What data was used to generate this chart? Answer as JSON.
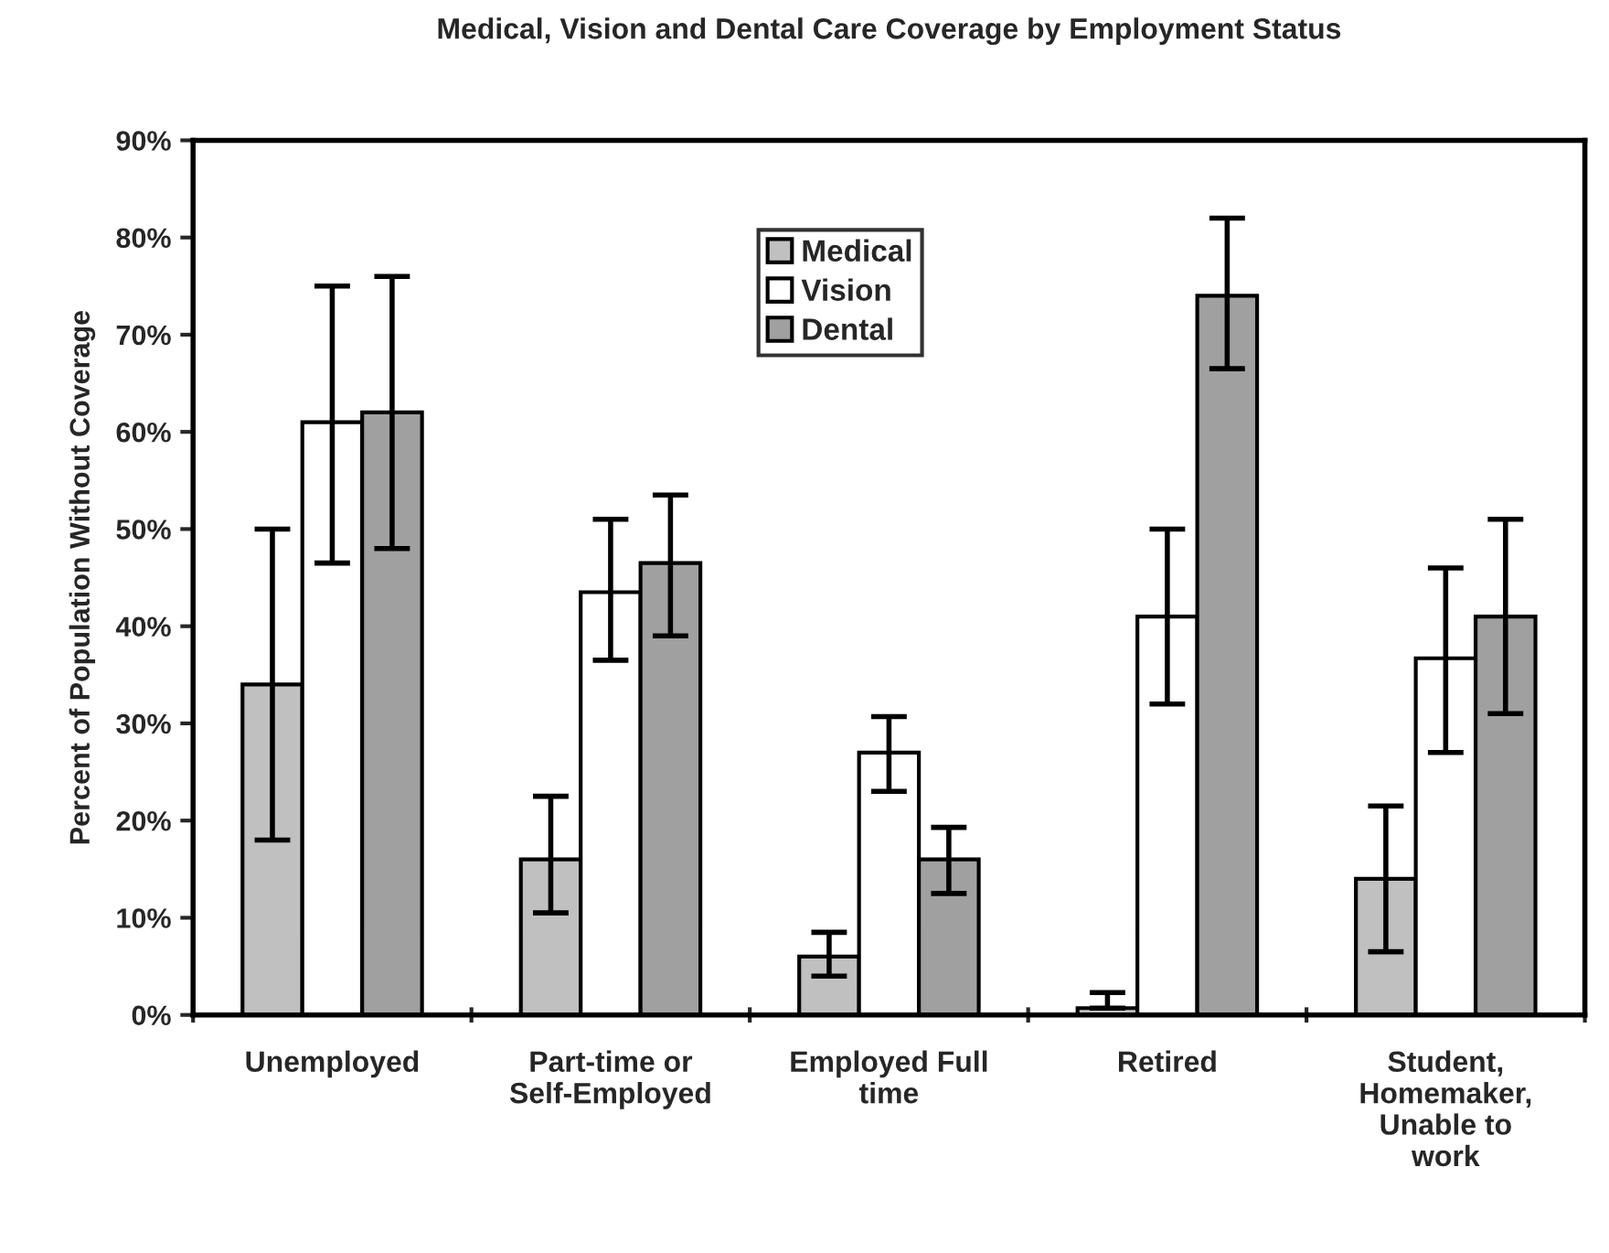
{
  "chart_data": {
    "type": "bar",
    "title": "Medical, Vision and Dental Care Coverage by Employment Status",
    "ylabel": "Percent of Population Without Coverage",
    "categories": [
      "Unemployed",
      "Part-time or\nSelf-Employed",
      "Employed Full\ntime",
      "Retired",
      "Student,\nHomemaker,\nUnable to\nwork"
    ],
    "series": [
      {
        "name": "Medical",
        "color": "#c0c0c0",
        "values": [
          34,
          16,
          6,
          0.7,
          14
        ],
        "errors": [
          [
            18,
            50
          ],
          [
            10.5,
            22.5
          ],
          [
            4,
            8.5
          ],
          [
            0.7,
            2.3
          ],
          [
            6.5,
            21.5
          ]
        ]
      },
      {
        "name": "Vision",
        "color": "#ffffff",
        "values": [
          61,
          43.5,
          27,
          41,
          36.7
        ],
        "errors": [
          [
            46.5,
            75
          ],
          [
            36.5,
            51
          ],
          [
            23,
            30.7
          ],
          [
            32,
            50
          ],
          [
            27,
            46
          ]
        ]
      },
      {
        "name": "Dental",
        "color": "#a0a0a0",
        "values": [
          62,
          46.5,
          16,
          74,
          41
        ],
        "errors": [
          [
            48,
            76
          ],
          [
            39,
            53.5
          ],
          [
            12.5,
            19.3
          ],
          [
            66.5,
            82
          ],
          [
            31,
            51
          ]
        ]
      }
    ],
    "ylim": [
      0,
      90
    ],
    "yticks": [
      {
        "value": 0,
        "label": "0%"
      },
      {
        "value": 10,
        "label": "10%"
      },
      {
        "value": 20,
        "label": "20%"
      },
      {
        "value": 30,
        "label": "30%"
      },
      {
        "value": 40,
        "label": "40%"
      },
      {
        "value": 50,
        "label": "50%"
      },
      {
        "value": 60,
        "label": "60%"
      },
      {
        "value": 70,
        "label": "70%"
      },
      {
        "value": 80,
        "label": "80%"
      },
      {
        "value": 90,
        "label": "90%"
      }
    ],
    "grid": false,
    "legend": "top"
  }
}
